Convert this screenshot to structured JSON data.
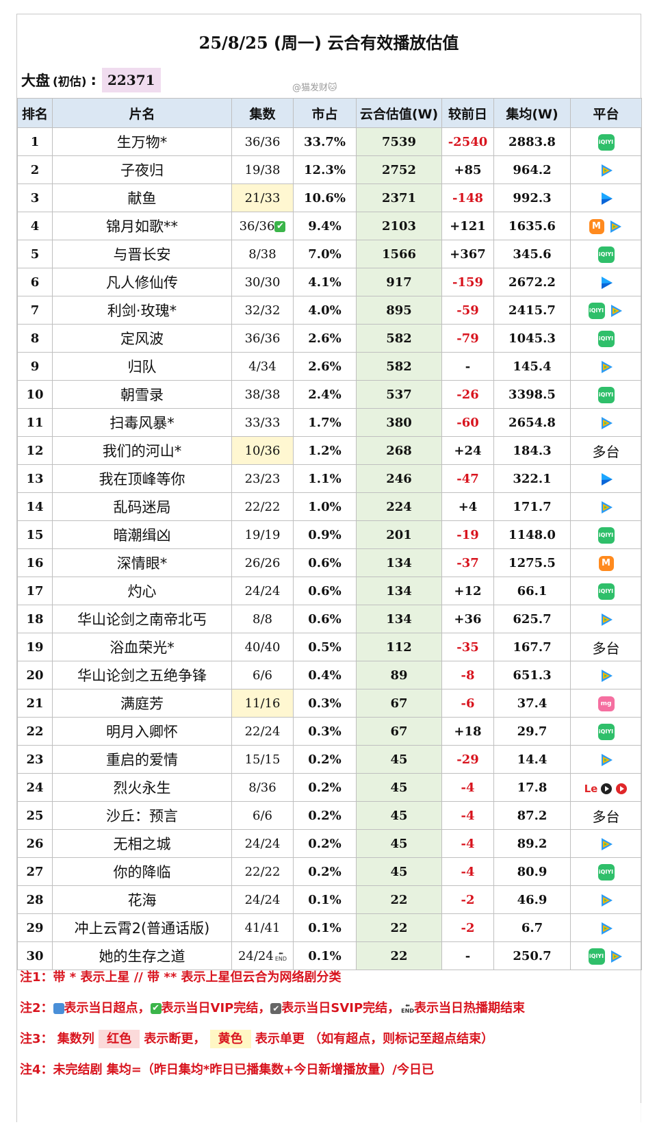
{
  "title": {
    "date": "25/8/25",
    "text": " (周一) 云合有效播放估值"
  },
  "dapan": {
    "label": "大盘",
    "sub": "(初估)",
    "colon": ":",
    "value": "22371"
  },
  "watermark": "@猫发财🐱",
  "colors": {
    "header_bg": "#dbe7f3",
    "yunhe_bg": "#e7f2df",
    "negative": "#d8141e",
    "yellow_hl": "#fff7d1",
    "note_red": "#d8141e"
  },
  "table": {
    "headers": [
      "排名",
      "片名",
      "集数",
      "市占",
      "云合估值(W)",
      "较前日",
      "集均(W)",
      "平台"
    ],
    "rows": [
      {
        "rank": "1",
        "name": "生万物*",
        "ep": "36/36",
        "share": "33.7%",
        "yunhe": "7539",
        "delta": "-2540",
        "avg": "2883.8",
        "platform": "iqiyi"
      },
      {
        "rank": "2",
        "name": "子夜归",
        "ep": "19/38",
        "share": "12.3%",
        "yunhe": "2752",
        "delta": "+85",
        "avg": "964.2",
        "platform": "tencent"
      },
      {
        "rank": "3",
        "name": "献鱼",
        "ep": "21/33",
        "share": "10.6%",
        "yunhe": "2371",
        "delta": "-148",
        "avg": "992.3",
        "platform": "youku",
        "ep_hl": true
      },
      {
        "rank": "4",
        "name": "锦月如歌**",
        "ep": "36/36",
        "share": "9.4%",
        "yunhe": "2103",
        "delta": "+121",
        "avg": "1635.6",
        "platform": "mango+tencent",
        "ep_check": "✔"
      },
      {
        "rank": "5",
        "name": "与晋长安",
        "ep": "8/38",
        "share": "7.0%",
        "yunhe": "1566",
        "delta": "+367",
        "avg": "345.6",
        "platform": "iqiyi"
      },
      {
        "rank": "6",
        "name": "凡人修仙传",
        "ep": "30/30",
        "share": "4.1%",
        "yunhe": "917",
        "delta": "-159",
        "avg": "2672.2",
        "platform": "youku"
      },
      {
        "rank": "7",
        "name": "利剑·玫瑰*",
        "ep": "32/32",
        "share": "4.0%",
        "yunhe": "895",
        "delta": "-59",
        "avg": "2415.7",
        "platform": "iqiyi+tencent"
      },
      {
        "rank": "8",
        "name": "定风波",
        "ep": "36/36",
        "share": "2.6%",
        "yunhe": "582",
        "delta": "-79",
        "avg": "1045.3",
        "platform": "iqiyi"
      },
      {
        "rank": "9",
        "name": "归队",
        "ep": "4/34",
        "share": "2.6%",
        "yunhe": "582",
        "delta": "-",
        "avg": "145.4",
        "platform": "tencent"
      },
      {
        "rank": "10",
        "name": "朝雪录",
        "ep": "38/38",
        "share": "2.4%",
        "yunhe": "537",
        "delta": "-26",
        "avg": "3398.5",
        "platform": "iqiyi"
      },
      {
        "rank": "11",
        "name": "扫毒风暴*",
        "ep": "33/33",
        "share": "1.7%",
        "yunhe": "380",
        "delta": "-60",
        "avg": "2654.8",
        "platform": "tencent"
      },
      {
        "rank": "12",
        "name": "我们的河山*",
        "ep": "10/36",
        "share": "1.2%",
        "yunhe": "268",
        "delta": "+24",
        "avg": "184.3",
        "platform": "多台",
        "ep_hl": true
      },
      {
        "rank": "13",
        "name": "我在顶峰等你",
        "ep": "23/23",
        "share": "1.1%",
        "yunhe": "246",
        "delta": "-47",
        "avg": "322.1",
        "platform": "youku"
      },
      {
        "rank": "14",
        "name": "乱码迷局",
        "ep": "22/22",
        "share": "1.0%",
        "yunhe": "224",
        "delta": "+4",
        "avg": "171.7",
        "platform": "tencent"
      },
      {
        "rank": "15",
        "name": "暗潮缉凶",
        "ep": "19/19",
        "share": "0.9%",
        "yunhe": "201",
        "delta": "-19",
        "avg": "1148.0",
        "platform": "iqiyi"
      },
      {
        "rank": "16",
        "name": "深情眼*",
        "ep": "26/26",
        "share": "0.6%",
        "yunhe": "134",
        "delta": "-37",
        "avg": "1275.5",
        "platform": "mango"
      },
      {
        "rank": "17",
        "name": "灼心",
        "ep": "24/24",
        "share": "0.6%",
        "yunhe": "134",
        "delta": "+12",
        "avg": "66.1",
        "platform": "iqiyi"
      },
      {
        "rank": "18",
        "name": "华山论剑之南帝北丐",
        "ep": "8/8",
        "share": "0.6%",
        "yunhe": "134",
        "delta": "+36",
        "avg": "625.7",
        "platform": "tencent"
      },
      {
        "rank": "19",
        "name": "浴血荣光*",
        "ep": "40/40",
        "share": "0.5%",
        "yunhe": "112",
        "delta": "-35",
        "avg": "167.7",
        "platform": "多台"
      },
      {
        "rank": "20",
        "name": "华山论剑之五绝争锋",
        "ep": "6/6",
        "share": "0.4%",
        "yunhe": "89",
        "delta": "-8",
        "avg": "651.3",
        "platform": "tencent"
      },
      {
        "rank": "21",
        "name": "满庭芳",
        "ep": "11/16",
        "share": "0.3%",
        "yunhe": "67",
        "delta": "-6",
        "avg": "37.4",
        "platform": "mgtv-pink",
        "ep_hl": true
      },
      {
        "rank": "22",
        "name": "明月入卿怀",
        "ep": "22/24",
        "share": "0.3%",
        "yunhe": "67",
        "delta": "+18",
        "avg": "29.7",
        "platform": "iqiyi"
      },
      {
        "rank": "23",
        "name": "重启的爱情",
        "ep": "15/15",
        "share": "0.2%",
        "yunhe": "45",
        "delta": "-29",
        "avg": "14.4",
        "platform": "tencent"
      },
      {
        "rank": "24",
        "name": "烈火永生",
        "ep": "8/36",
        "share": "0.2%",
        "yunhe": "45",
        "delta": "-4",
        "avg": "17.8",
        "platform": "le"
      },
      {
        "rank": "25",
        "name": "沙丘：预言",
        "ep": "6/6",
        "share": "0.2%",
        "yunhe": "45",
        "delta": "-4",
        "avg": "87.2",
        "platform": "多台"
      },
      {
        "rank": "26",
        "name": "无相之城",
        "ep": "24/24",
        "share": "0.2%",
        "yunhe": "45",
        "delta": "-4",
        "avg": "89.2",
        "platform": "tencent"
      },
      {
        "rank": "27",
        "name": "你的降临",
        "ep": "22/22",
        "share": "0.2%",
        "yunhe": "45",
        "delta": "-4",
        "avg": "80.9",
        "platform": "iqiyi"
      },
      {
        "rank": "28",
        "name": "花海",
        "ep": "24/24",
        "share": "0.1%",
        "yunhe": "22",
        "delta": "-2",
        "avg": "46.9",
        "platform": "tencent"
      },
      {
        "rank": "29",
        "name": "冲上云霄2(普通话版)",
        "ep": "41/41",
        "share": "0.1%",
        "yunhe": "22",
        "delta": "-2",
        "avg": "6.7",
        "platform": "tencent"
      },
      {
        "rank": "30",
        "name": "她的生存之道",
        "ep": "24/24",
        "share": "0.1%",
        "yunhe": "22",
        "delta": "-",
        "avg": "250.7",
        "platform": "iqiyi+tencent",
        "ep_end": "END"
      }
    ]
  },
  "icons": {
    "iqiyi": "iQIYI",
    "mango": "M",
    "le_text": "Le",
    "tencent": "tencent-play-icon",
    "youku": "youku-icon"
  },
  "notes": {
    "n1": "注1：带 * 表示上星 // 带 ** 表示上星但云合为网络剧分类",
    "n2_a": "注2：",
    "n2_b": "表示当日超点，",
    "n2_c": "表示当日VIP完结，",
    "n2_d": "表示当日SVIP完结，",
    "n2_e": "表示当日热播期结束",
    "n3_a": "注3：   集数列",
    "n3_red": "红色",
    "n3_b": "表示断更，",
    "n3_yellow": "黄色",
    "n3_c": "表示单更 （如有超点，则标记至超点结束）",
    "n4": "注4：未完结剧 集均=（昨日集均*昨日已播集数+今日新增播放量）/今日已"
  }
}
